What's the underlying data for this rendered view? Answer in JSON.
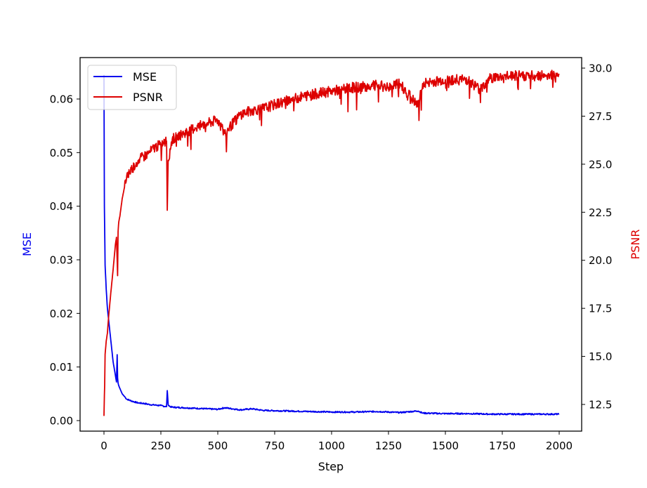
{
  "chart_data": {
    "type": "line",
    "title": "",
    "xlabel": "Step",
    "ylabel_left": "MSE",
    "ylabel_right": "PSNR",
    "dual_axis": true,
    "grid": false,
    "legend_position": "upper left",
    "xlim": [
      -100,
      2100
    ],
    "xticks": [
      0,
      250,
      500,
      750,
      1000,
      1250,
      1500,
      1750,
      2000
    ],
    "xtick_labels": [
      "0",
      "250",
      "500",
      "750",
      "1000",
      "1250",
      "1500",
      "1750",
      "2000"
    ],
    "ylim_left": [
      -0.002,
      0.0677
    ],
    "yticks_left": [
      0.0,
      0.01,
      0.02,
      0.03,
      0.04,
      0.05,
      0.06
    ],
    "ytick_labels_left": [
      "0.00",
      "0.01",
      "0.02",
      "0.03",
      "0.04",
      "0.05",
      "0.06"
    ],
    "ylim_right": [
      11.4,
      30.6
    ],
    "yticks_right": [
      12.5,
      15.0,
      17.5,
      20.0,
      22.5,
      25.0,
      27.5,
      30.0
    ],
    "ytick_labels_right": [
      "12.5",
      "15.0",
      "17.5",
      "20.0",
      "22.5",
      "25.0",
      "27.5",
      "30.0"
    ],
    "series": [
      {
        "name": "MSE",
        "axis": "left",
        "color": "#0000ee",
        "x": [
          0,
          2,
          5,
          10,
          15,
          20,
          30,
          40,
          50,
          55,
          58,
          60,
          62,
          65,
          70,
          80,
          100,
          125,
          150,
          175,
          200,
          250,
          275,
          278,
          282,
          290,
          300,
          350,
          400,
          500,
          530,
          600,
          650,
          700,
          800,
          900,
          1000,
          1100,
          1200,
          1300,
          1380,
          1400,
          1500,
          1600,
          1700,
          1800,
          1900,
          2000
        ],
        "values": [
          0.0645,
          0.04,
          0.029,
          0.0245,
          0.021,
          0.019,
          0.015,
          0.011,
          0.0085,
          0.0072,
          0.0123,
          0.008,
          0.007,
          0.0065,
          0.006,
          0.005,
          0.004,
          0.0036,
          0.0033,
          0.0032,
          0.003,
          0.0028,
          0.0026,
          0.0056,
          0.003,
          0.0026,
          0.0025,
          0.0024,
          0.0023,
          0.0021,
          0.0024,
          0.002,
          0.0022,
          0.0019,
          0.0018,
          0.0017,
          0.0016,
          0.0016,
          0.0017,
          0.0015,
          0.0018,
          0.0014,
          0.0013,
          0.0013,
          0.0012,
          0.0012,
          0.0012,
          0.0012
        ]
      },
      {
        "name": "PSNR",
        "axis": "right",
        "color": "#dd0000",
        "x": [
          0,
          3,
          5,
          10,
          15,
          20,
          30,
          40,
          50,
          55,
          60,
          62,
          65,
          70,
          80,
          90,
          100,
          125,
          150,
          175,
          200,
          225,
          250,
          275,
          278,
          282,
          290,
          300,
          350,
          400,
          450,
          500,
          530,
          600,
          650,
          700,
          750,
          800,
          900,
          1000,
          1100,
          1200,
          1250,
          1300,
          1380,
          1400,
          1500,
          1600,
          1650,
          1700,
          1800,
          1900,
          2000
        ],
        "values": [
          11.9,
          13.5,
          15.1,
          15.8,
          16.2,
          17.0,
          18.3,
          19.5,
          20.8,
          21.2,
          19.2,
          21.5,
          22.0,
          22.3,
          23.2,
          23.8,
          24.4,
          24.8,
          25.2,
          25.4,
          25.6,
          25.9,
          26.0,
          26.2,
          22.6,
          25.2,
          25.8,
          26.3,
          26.6,
          26.9,
          27.1,
          27.3,
          26.6,
          27.6,
          27.8,
          27.9,
          28.1,
          28.3,
          28.6,
          28.8,
          29.0,
          29.1,
          29.0,
          29.2,
          28.0,
          29.2,
          29.4,
          29.4,
          28.9,
          29.5,
          29.6,
          29.6,
          29.7
        ]
      }
    ]
  },
  "legend": {
    "items": [
      {
        "label": "MSE",
        "color": "#0000ee"
      },
      {
        "label": "PSNR",
        "color": "#dd0000"
      }
    ]
  }
}
